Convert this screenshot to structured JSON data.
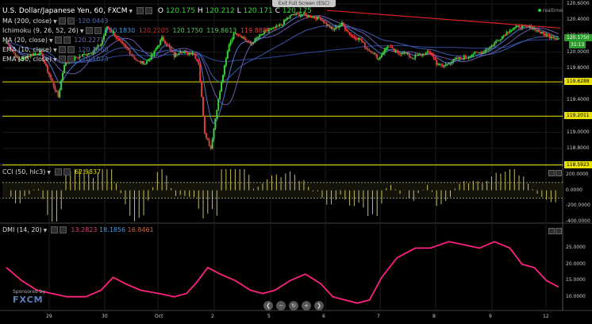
{
  "header": {
    "title": "U.S. Dollar/Japanese Yen, 60, FXCM",
    "ohlc": [
      {
        "k": "O",
        "v": "120.175"
      },
      {
        "k": "H",
        "v": "120.212"
      },
      {
        "k": "L",
        "v": "120.171"
      },
      {
        "k": "C",
        "v": "120.175"
      }
    ],
    "exit_label": "Exit Full Screen (ESC)",
    "realtime": "realtime"
  },
  "legend": [
    {
      "name": "MA (200, close)",
      "values": [
        {
          "v": "120.0443",
          "c": "#4a6ab0"
        }
      ]
    },
    {
      "name": "Ichimoku (9, 26, 52, 26)",
      "values": [
        {
          "v": "120.1830",
          "c": "#4a9ae0"
        },
        {
          "v": "120.2205",
          "c": "#d03030"
        },
        {
          "v": "120.1750",
          "c": "#60c060"
        },
        {
          "v": "119.8613",
          "c": "#60c060"
        },
        {
          "v": "119.8885",
          "c": "#e04040"
        }
      ]
    },
    {
      "name": "MA (20, close)",
      "values": [
        {
          "v": "120.2271",
          "c": "#7a6ab0"
        }
      ]
    },
    {
      "name": "EMA (10, close)",
      "values": [
        {
          "v": "120.1960",
          "c": "#4a6ab0"
        }
      ]
    },
    {
      "name": "EMA (50, close)",
      "values": [
        {
          "v": "120.1073",
          "c": "#4a6ab0"
        }
      ]
    }
  ],
  "price_axis": {
    "ticks": [
      "120.6000",
      "120.4000",
      "120.2000",
      "120.0000",
      "119.8000",
      "119.6000",
      "119.4000",
      "119.2000",
      "119.0000",
      "118.8000",
      "118.6000"
    ],
    "current_price": "120.1750",
    "current_time": "31:13",
    "levels": [
      {
        "label": "119.6288"
      },
      {
        "label": "119.2011"
      },
      {
        "label": "118.5923"
      }
    ]
  },
  "cci": {
    "title": "CCI (50, hlc3)",
    "value": "62.9837",
    "ticks": [
      "200.0000",
      "0.0000",
      "-200.0000",
      "-400.0000"
    ]
  },
  "dmi": {
    "title": "DMI (14, 20)",
    "values": [
      {
        "v": "13.2823",
        "c": "#e04070"
      },
      {
        "v": "18.1856",
        "c": "#4a9ae0"
      },
      {
        "v": "16.8461",
        "c": "#e06030"
      }
    ],
    "ticks": [
      "25.0000",
      "20.0000",
      "15.0000",
      "10.0000"
    ]
  },
  "time_axis": [
    "29",
    "30",
    "Oct",
    "2",
    "5",
    "6",
    "7",
    "8",
    "9",
    "12"
  ],
  "sponsor": {
    "line1": "Sponsored by",
    "brand": "FXCM"
  },
  "colors": {
    "bull": "#3cd03c",
    "bear": "#e03c3c",
    "level": "#e8e000",
    "trendline": "#e02020",
    "dmi_line": "#ff2080",
    "cci_bar": "#c8c060"
  }
}
